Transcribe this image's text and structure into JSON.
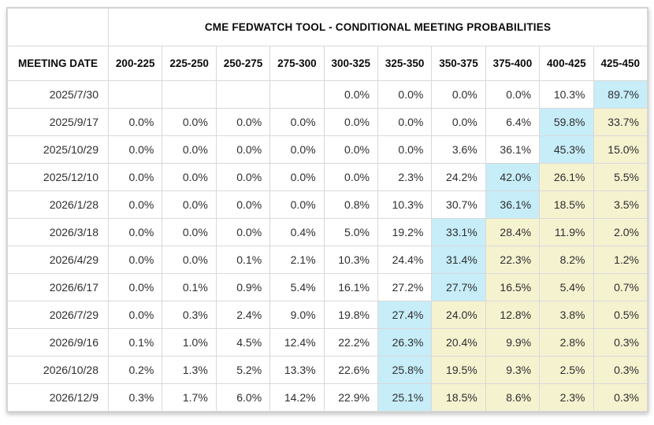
{
  "chart_data": {
    "type": "table",
    "title": "CME FEDWATCH TOOL - CONDITIONAL MEETING PROBABILITIES",
    "row_header_label": "MEETING DATE",
    "columns": [
      "200-225",
      "225-250",
      "250-275",
      "275-300",
      "300-325",
      "325-350",
      "350-375",
      "375-400",
      "400-425",
      "425-450"
    ],
    "rows": [
      {
        "date": "2025/7/30",
        "values": [
          "",
          "",
          "",
          "",
          "0.0%",
          "0.0%",
          "0.0%",
          "0.0%",
          "10.3%",
          "89.7%"
        ]
      },
      {
        "date": "2025/9/17",
        "values": [
          "0.0%",
          "0.0%",
          "0.0%",
          "0.0%",
          "0.0%",
          "0.0%",
          "0.0%",
          "6.4%",
          "59.8%",
          "33.7%"
        ]
      },
      {
        "date": "2025/10/29",
        "values": [
          "0.0%",
          "0.0%",
          "0.0%",
          "0.0%",
          "0.0%",
          "0.0%",
          "3.6%",
          "36.1%",
          "45.3%",
          "15.0%"
        ]
      },
      {
        "date": "2025/12/10",
        "values": [
          "0.0%",
          "0.0%",
          "0.0%",
          "0.0%",
          "0.0%",
          "2.3%",
          "24.2%",
          "42.0%",
          "26.1%",
          "5.5%"
        ]
      },
      {
        "date": "2026/1/28",
        "values": [
          "0.0%",
          "0.0%",
          "0.0%",
          "0.0%",
          "0.8%",
          "10.3%",
          "30.7%",
          "36.1%",
          "18.5%",
          "3.5%"
        ]
      },
      {
        "date": "2026/3/18",
        "values": [
          "0.0%",
          "0.0%",
          "0.0%",
          "0.4%",
          "5.0%",
          "19.2%",
          "33.1%",
          "28.4%",
          "11.9%",
          "2.0%"
        ]
      },
      {
        "date": "2026/4/29",
        "values": [
          "0.0%",
          "0.0%",
          "0.1%",
          "2.1%",
          "10.3%",
          "24.4%",
          "31.4%",
          "22.3%",
          "8.2%",
          "1.2%"
        ]
      },
      {
        "date": "2026/6/17",
        "values": [
          "0.0%",
          "0.1%",
          "0.9%",
          "5.4%",
          "16.1%",
          "27.2%",
          "27.7%",
          "16.5%",
          "5.4%",
          "0.7%"
        ]
      },
      {
        "date": "2026/7/29",
        "values": [
          "0.0%",
          "0.3%",
          "2.4%",
          "9.0%",
          "19.8%",
          "27.4%",
          "24.0%",
          "12.8%",
          "3.8%",
          "0.5%"
        ]
      },
      {
        "date": "2026/9/16",
        "values": [
          "0.1%",
          "1.0%",
          "4.5%",
          "12.4%",
          "22.2%",
          "26.3%",
          "20.4%",
          "9.9%",
          "2.8%",
          "0.3%"
        ]
      },
      {
        "date": "2026/10/28",
        "values": [
          "0.2%",
          "1.3%",
          "5.2%",
          "13.3%",
          "22.6%",
          "25.8%",
          "19.5%",
          "9.3%",
          "2.5%",
          "0.3%"
        ]
      },
      {
        "date": "2026/12/9",
        "values": [
          "0.3%",
          "1.7%",
          "6.0%",
          "14.2%",
          "22.9%",
          "25.1%",
          "18.5%",
          "8.6%",
          "2.3%",
          "0.3%"
        ]
      }
    ],
    "layout_hints": {
      "highlight_rule": "highest probability cell in each row shaded blue; cells to the right of it shaded yellow",
      "values_unit": "percent"
    },
    "colors": {
      "max_cell_highlight": "#c6edf8",
      "after_max_highlight": "#f5f2d0",
      "grid_line": "#d9d9d9",
      "header_text": "#0a0a0a",
      "cell_text": "#2e2e2e"
    }
  }
}
